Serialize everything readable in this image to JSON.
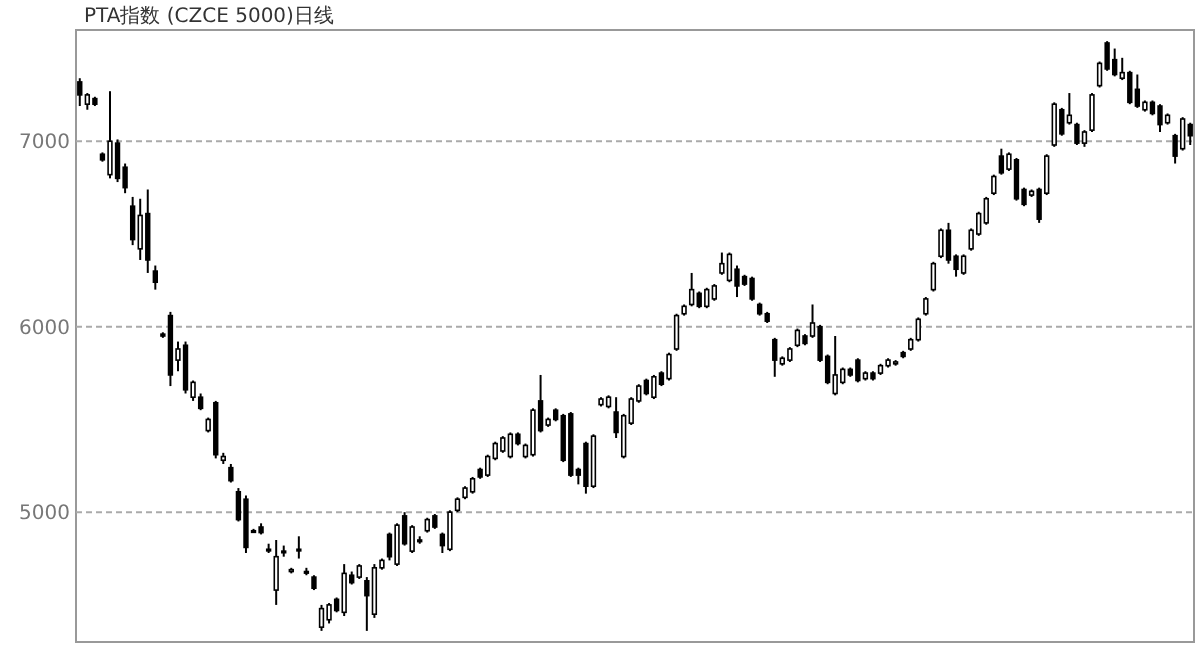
{
  "chart_data": {
    "type": "candlestick",
    "title": "PTA指数 (CZCE 5000)日线",
    "categories": [
      null,
      null,
      null,
      null,
      null,
      null,
      null,
      null,
      null,
      null,
      null,
      null,
      null,
      null,
      null,
      null,
      null,
      null,
      null,
      null,
      null,
      null,
      null,
      null,
      null,
      null,
      null,
      null,
      null,
      null,
      null,
      null,
      null,
      null,
      null,
      null,
      null,
      null,
      null,
      null,
      null,
      null,
      null,
      null,
      null,
      null,
      null,
      null,
      null,
      null,
      null,
      null,
      null,
      null,
      null,
      null,
      null,
      null,
      null,
      null,
      null,
      null,
      null,
      null,
      null,
      null,
      null,
      null,
      null,
      null,
      null,
      null,
      null,
      null,
      null,
      null,
      null,
      null,
      null,
      null,
      null,
      null,
      null,
      null,
      null,
      null,
      null,
      null,
      null,
      null,
      null,
      null,
      null,
      null,
      null,
      null,
      null,
      null,
      null,
      null,
      null,
      null,
      null,
      null,
      null,
      null,
      null,
      null,
      null,
      null,
      null,
      null,
      null,
      null,
      null,
      null,
      null,
      null,
      null,
      null,
      null,
      null,
      null,
      null,
      null,
      null,
      null,
      null,
      null,
      null,
      null,
      null,
      null,
      null,
      null,
      null,
      null,
      null,
      null,
      null,
      null,
      null,
      null,
      null,
      null,
      null,
      null,
      null
    ],
    "ohlc": [
      [
        7320,
        7340,
        7190,
        7250
      ],
      [
        7200,
        7260,
        7170,
        7250
      ],
      [
        7230,
        7240,
        7190,
        7200
      ],
      [
        6930,
        6940,
        6890,
        6900
      ],
      [
        6820,
        7270,
        6800,
        7000
      ],
      [
        6990,
        7010,
        6780,
        6800
      ],
      [
        6860,
        6880,
        6720,
        6750
      ],
      [
        6650,
        6700,
        6440,
        6470
      ],
      [
        6420,
        6690,
        6360,
        6600
      ],
      [
        6610,
        6740,
        6290,
        6360
      ],
      [
        6300,
        6330,
        6200,
        6240
      ],
      [
        5960,
        5970,
        5940,
        5950
      ],
      [
        6060,
        6080,
        5680,
        5740
      ],
      [
        5820,
        5920,
        5760,
        5880
      ],
      [
        5900,
        5920,
        5640,
        5660
      ],
      [
        5620,
        5710,
        5600,
        5700
      ],
      [
        5620,
        5640,
        5550,
        5560
      ],
      [
        5440,
        5510,
        5430,
        5500
      ],
      [
        5590,
        5600,
        5290,
        5310
      ],
      [
        5280,
        5320,
        5260,
        5300
      ],
      [
        5240,
        5260,
        5160,
        5170
      ],
      [
        5110,
        5130,
        4950,
        4960
      ],
      [
        5070,
        5090,
        4780,
        4810
      ],
      [
        4900,
        4910,
        4890,
        4900
      ],
      [
        4920,
        4940,
        4880,
        4890
      ],
      [
        4800,
        4830,
        4780,
        4800
      ],
      [
        4580,
        4850,
        4500,
        4760
      ],
      [
        4790,
        4820,
        4760,
        4790
      ],
      [
        4680,
        4700,
        4670,
        4690
      ],
      [
        4800,
        4870,
        4750,
        4800
      ],
      [
        4680,
        4700,
        4660,
        4680
      ],
      [
        4650,
        4660,
        4580,
        4590
      ],
      [
        4380,
        4500,
        4360,
        4480
      ],
      [
        4420,
        4510,
        4400,
        4500
      ],
      [
        4530,
        4540,
        4460,
        4470
      ],
      [
        4460,
        4720,
        4440,
        4670
      ],
      [
        4660,
        4680,
        4610,
        4620
      ],
      [
        4650,
        4720,
        4640,
        4710
      ],
      [
        4630,
        4650,
        4360,
        4550
      ],
      [
        4450,
        4720,
        4430,
        4700
      ],
      [
        4700,
        4750,
        4690,
        4740
      ],
      [
        4880,
        4890,
        4740,
        4760
      ],
      [
        4720,
        4940,
        4710,
        4930
      ],
      [
        4980,
        5000,
        4820,
        4830
      ],
      [
        4790,
        4930,
        4780,
        4920
      ],
      [
        4850,
        4870,
        4830,
        4850
      ],
      [
        4900,
        4970,
        4890,
        4960
      ],
      [
        4980,
        4990,
        4910,
        4920
      ],
      [
        4880,
        4890,
        4780,
        4820
      ],
      [
        4800,
        5010,
        4790,
        5000
      ],
      [
        5010,
        5080,
        5000,
        5070
      ],
      [
        5080,
        5140,
        5070,
        5130
      ],
      [
        5110,
        5190,
        5100,
        5180
      ],
      [
        5230,
        5240,
        5180,
        5190
      ],
      [
        5200,
        5310,
        5190,
        5300
      ],
      [
        5290,
        5380,
        5280,
        5370
      ],
      [
        5330,
        5410,
        5320,
        5400
      ],
      [
        5300,
        5430,
        5290,
        5420
      ],
      [
        5420,
        5430,
        5360,
        5370
      ],
      [
        5300,
        5370,
        5290,
        5360
      ],
      [
        5310,
        5560,
        5300,
        5550
      ],
      [
        5600,
        5740,
        5430,
        5440
      ],
      [
        5470,
        5510,
        5460,
        5500
      ],
      [
        5550,
        5560,
        5490,
        5500
      ],
      [
        5520,
        5530,
        5270,
        5280
      ],
      [
        5530,
        5540,
        5190,
        5200
      ],
      [
        5230,
        5240,
        5150,
        5200
      ],
      [
        5370,
        5380,
        5100,
        5140
      ],
      [
        5140,
        5420,
        5130,
        5410
      ],
      [
        5580,
        5620,
        5570,
        5610
      ],
      [
        5570,
        5630,
        5560,
        5620
      ],
      [
        5540,
        5620,
        5400,
        5430
      ],
      [
        5300,
        5530,
        5290,
        5520
      ],
      [
        5480,
        5620,
        5470,
        5610
      ],
      [
        5600,
        5690,
        5590,
        5680
      ],
      [
        5710,
        5720,
        5630,
        5640
      ],
      [
        5620,
        5740,
        5610,
        5730
      ],
      [
        5750,
        5760,
        5680,
        5690
      ],
      [
        5720,
        5860,
        5710,
        5850
      ],
      [
        5880,
        6070,
        5870,
        6060
      ],
      [
        6070,
        6120,
        6060,
        6110
      ],
      [
        6120,
        6290,
        6110,
        6200
      ],
      [
        6180,
        6190,
        6100,
        6110
      ],
      [
        6110,
        6210,
        6100,
        6200
      ],
      [
        6150,
        6230,
        6140,
        6220
      ],
      [
        6290,
        6400,
        6280,
        6340
      ],
      [
        6250,
        6400,
        6240,
        6390
      ],
      [
        6310,
        6330,
        6160,
        6220
      ],
      [
        6270,
        6280,
        6220,
        6230
      ],
      [
        6260,
        6270,
        6140,
        6150
      ],
      [
        6120,
        6130,
        6060,
        6070
      ],
      [
        6070,
        6080,
        6020,
        6030
      ],
      [
        5930,
        5940,
        5730,
        5820
      ],
      [
        5800,
        5840,
        5790,
        5830
      ],
      [
        5820,
        5890,
        5810,
        5880
      ],
      [
        5900,
        5990,
        5890,
        5980
      ],
      [
        5950,
        5960,
        5900,
        5910
      ],
      [
        5950,
        6120,
        5940,
        6020
      ],
      [
        6000,
        6010,
        5810,
        5820
      ],
      [
        5840,
        5850,
        5690,
        5700
      ],
      [
        5640,
        5950,
        5630,
        5740
      ],
      [
        5700,
        5780,
        5690,
        5770
      ],
      [
        5770,
        5780,
        5730,
        5740
      ],
      [
        5820,
        5830,
        5700,
        5710
      ],
      [
        5720,
        5760,
        5710,
        5750
      ],
      [
        5750,
        5760,
        5710,
        5720
      ],
      [
        5750,
        5800,
        5740,
        5790
      ],
      [
        5790,
        5830,
        5780,
        5820
      ],
      [
        5800,
        5820,
        5790,
        5810
      ],
      [
        5860,
        5870,
        5830,
        5840
      ],
      [
        5880,
        5940,
        5870,
        5930
      ],
      [
        5930,
        6050,
        5920,
        6040
      ],
      [
        6070,
        6160,
        6060,
        6150
      ],
      [
        6200,
        6350,
        6190,
        6340
      ],
      [
        6380,
        6530,
        6370,
        6520
      ],
      [
        6520,
        6560,
        6340,
        6360
      ],
      [
        6380,
        6390,
        6270,
        6310
      ],
      [
        6290,
        6390,
        6280,
        6380
      ],
      [
        6420,
        6530,
        6410,
        6520
      ],
      [
        6500,
        6620,
        6490,
        6610
      ],
      [
        6560,
        6700,
        6550,
        6690
      ],
      [
        6720,
        6820,
        6710,
        6810
      ],
      [
        6920,
        6960,
        6820,
        6830
      ],
      [
        6850,
        6940,
        6840,
        6930
      ],
      [
        6900,
        6910,
        6680,
        6690
      ],
      [
        6740,
        6750,
        6650,
        6660
      ],
      [
        6710,
        6740,
        6700,
        6730
      ],
      [
        6740,
        6750,
        6560,
        6580
      ],
      [
        6720,
        6930,
        6710,
        6920
      ],
      [
        6980,
        7210,
        6970,
        7200
      ],
      [
        7170,
        7180,
        7030,
        7040
      ],
      [
        7100,
        7260,
        7090,
        7140
      ],
      [
        7090,
        7100,
        6980,
        6990
      ],
      [
        6990,
        7060,
        6970,
        7050
      ],
      [
        7060,
        7260,
        7050,
        7250
      ],
      [
        7300,
        7430,
        7290,
        7420
      ],
      [
        7530,
        7540,
        7380,
        7390
      ],
      [
        7440,
        7500,
        7350,
        7360
      ],
      [
        7340,
        7450,
        7330,
        7370
      ],
      [
        7370,
        7380,
        7200,
        7210
      ],
      [
        7280,
        7360,
        7180,
        7190
      ],
      [
        7170,
        7220,
        7160,
        7210
      ],
      [
        7210,
        7220,
        7140,
        7150
      ],
      [
        7190,
        7200,
        7050,
        7090
      ],
      [
        7100,
        7150,
        7090,
        7140
      ],
      [
        7030,
        7040,
        6880,
        6920
      ],
      [
        6960,
        7130,
        6950,
        7120
      ],
      [
        7090,
        7100,
        6980,
        7030
      ]
    ],
    "ylim": [
      4300,
      7600
    ],
    "yticks": [
      5000,
      6000,
      7000
    ],
    "grid": "y"
  }
}
